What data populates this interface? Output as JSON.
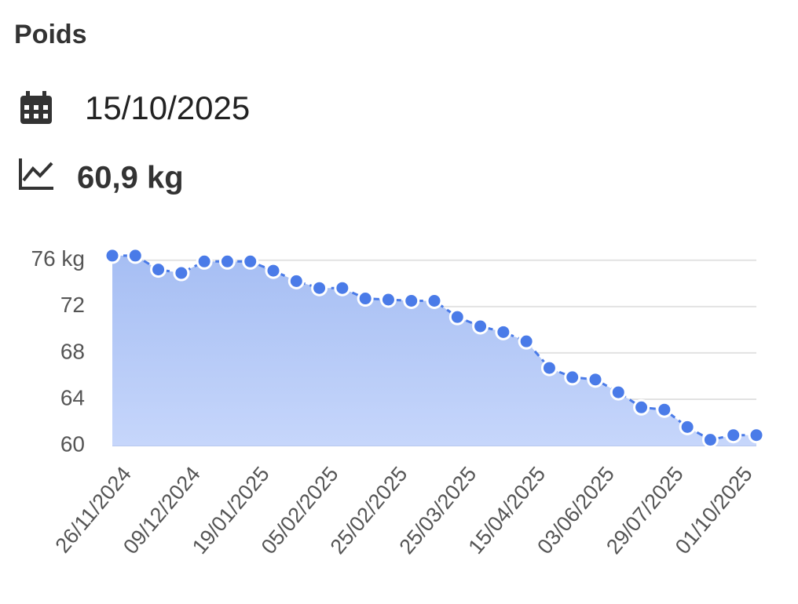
{
  "header": {
    "title": "Poids",
    "date": "15/10/2025",
    "weight": "60,9 kg"
  },
  "chart_data": {
    "type": "area",
    "categories": [
      "26/11/2024",
      null,
      null,
      "09/12/2024",
      null,
      null,
      "19/01/2025",
      null,
      null,
      "05/02/2025",
      null,
      null,
      "25/02/2025",
      null,
      null,
      "25/03/2025",
      null,
      null,
      "15/04/2025",
      null,
      null,
      "03/06/2025",
      null,
      null,
      "29/07/2025",
      null,
      null,
      "01/10/2025",
      null
    ],
    "series": [
      {
        "color": "#4a7be8",
        "values": [
          76.4,
          76.4,
          75.2,
          74.9,
          75.9,
          75.9,
          75.9,
          75.1,
          74.2,
          73.6,
          73.6,
          72.7,
          72.6,
          72.5,
          72.5,
          71.1,
          70.3,
          69.8,
          69.0,
          66.7,
          65.9,
          65.7,
          64.6,
          63.3,
          63.1,
          61.6,
          60.5,
          60.9,
          60.9
        ]
      }
    ],
    "ylim": [
      60,
      76.8
    ],
    "yticks": [
      60,
      64,
      68,
      72,
      {
        "value": 76,
        "label": "76 kg"
      }
    ],
    "grid": true
  }
}
